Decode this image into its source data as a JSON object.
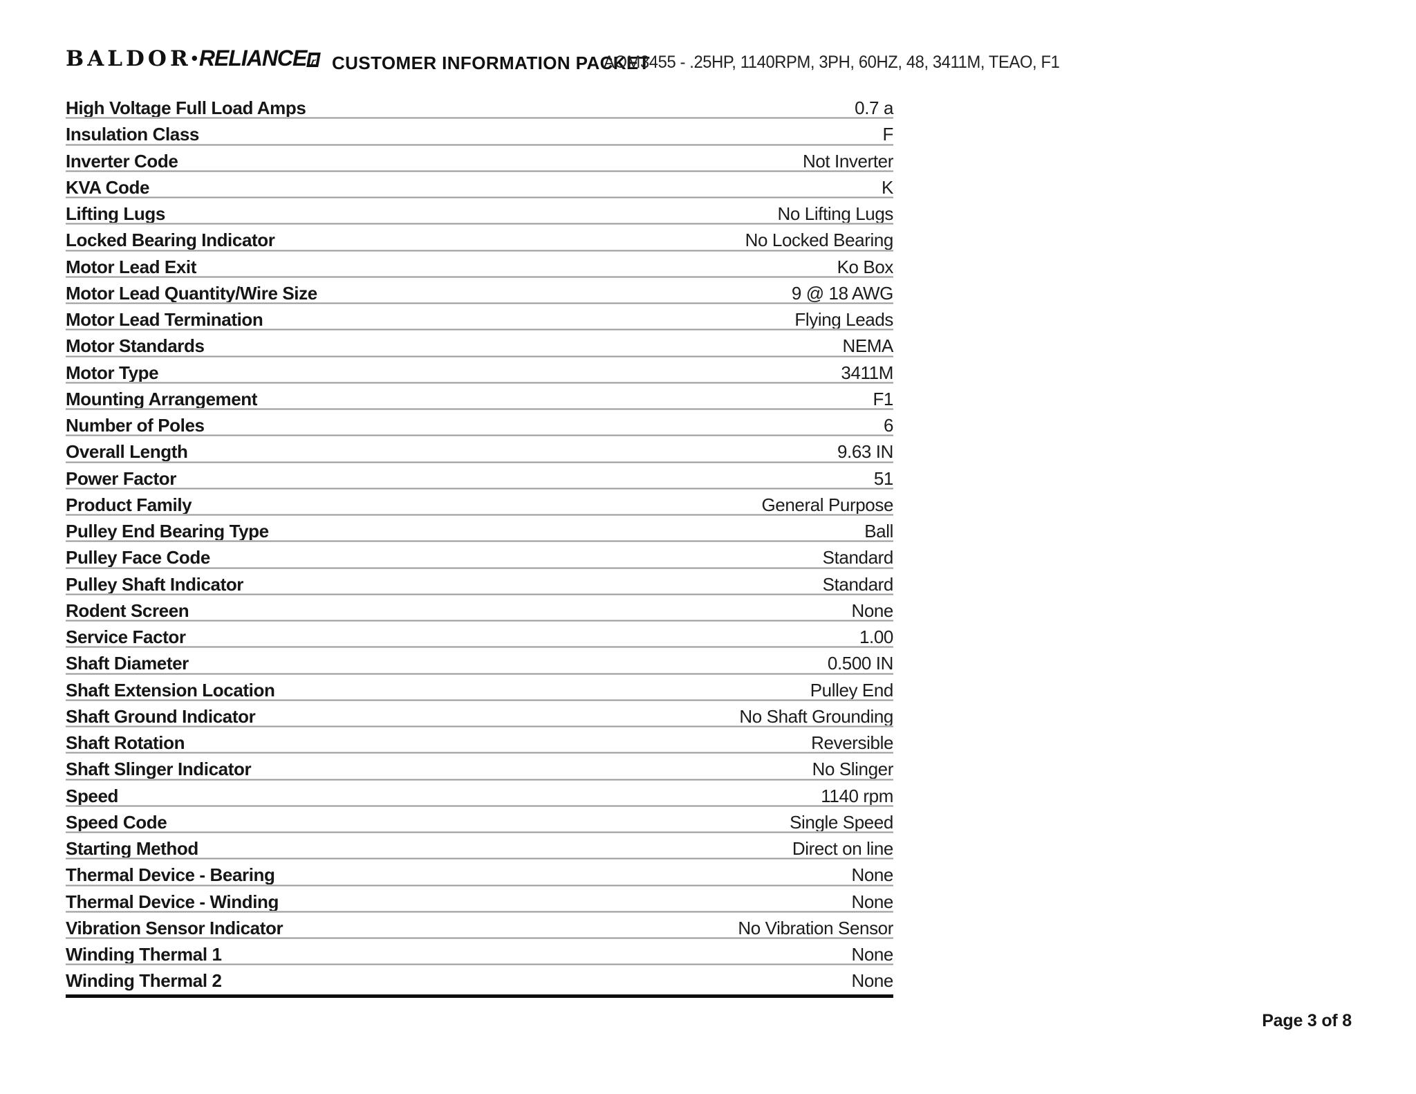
{
  "header": {
    "logo_baldor": "BALDOR",
    "logo_separator": "•",
    "logo_reliance": "RELIANCE",
    "logo_trademark": "r",
    "title": "CUSTOMER INFORMATION PACKET",
    "product_description": "AOM3455 - .25HP, 1140RPM, 3PH, 60HZ, 48, 3411M, TEAO, F1"
  },
  "spec_table": {
    "rows": [
      {
        "label": "High Voltage Full Load Amps",
        "value": "0.7 a"
      },
      {
        "label": "Insulation Class",
        "value": "F"
      },
      {
        "label": "Inverter Code",
        "value": "Not Inverter"
      },
      {
        "label": "KVA Code",
        "value": "K"
      },
      {
        "label": "Lifting Lugs",
        "value": "No Lifting Lugs"
      },
      {
        "label": "Locked Bearing Indicator",
        "value": "No Locked Bearing"
      },
      {
        "label": "Motor Lead Exit",
        "value": "Ko Box"
      },
      {
        "label": "Motor Lead Quantity/Wire Size",
        "value": "9 @ 18 AWG"
      },
      {
        "label": "Motor Lead Termination",
        "value": "Flying Leads"
      },
      {
        "label": "Motor Standards",
        "value": "NEMA"
      },
      {
        "label": "Motor Type",
        "value": "3411M"
      },
      {
        "label": "Mounting Arrangement",
        "value": "F1"
      },
      {
        "label": "Number of Poles",
        "value": "6"
      },
      {
        "label": "Overall Length",
        "value": "9.63 IN"
      },
      {
        "label": "Power Factor",
        "value": "51"
      },
      {
        "label": "Product Family",
        "value": "General Purpose"
      },
      {
        "label": "Pulley End Bearing Type",
        "value": "Ball"
      },
      {
        "label": "Pulley Face Code",
        "value": "Standard"
      },
      {
        "label": "Pulley Shaft Indicator",
        "value": "Standard"
      },
      {
        "label": "Rodent Screen",
        "value": "None"
      },
      {
        "label": "Service Factor",
        "value": "1.00"
      },
      {
        "label": "Shaft Diameter",
        "value": "0.500 IN"
      },
      {
        "label": "Shaft Extension Location",
        "value": "Pulley End"
      },
      {
        "label": "Shaft Ground Indicator",
        "value": "No Shaft Grounding"
      },
      {
        "label": "Shaft Rotation",
        "value": "Reversible"
      },
      {
        "label": "Shaft Slinger Indicator",
        "value": "No Slinger"
      },
      {
        "label": "Speed",
        "value": "1140 rpm"
      },
      {
        "label": "Speed Code",
        "value": "Single Speed"
      },
      {
        "label": "Starting Method",
        "value": "Direct on line"
      },
      {
        "label": "Thermal Device - Bearing",
        "value": "None"
      },
      {
        "label": "Thermal Device - Winding",
        "value": "None"
      },
      {
        "label": "Vibration Sensor Indicator",
        "value": "No Vibration Sensor"
      },
      {
        "label": "Winding Thermal 1",
        "value": "None"
      },
      {
        "label": "Winding Thermal 2",
        "value": "None"
      }
    ]
  },
  "footer": {
    "page_indicator": "Page 3 of 8"
  },
  "colors": {
    "background": "#ffffff",
    "text": "#1a1a1a",
    "row_separator": "#8c8c8c",
    "table_bottom_rule": "#0d0d0d"
  }
}
